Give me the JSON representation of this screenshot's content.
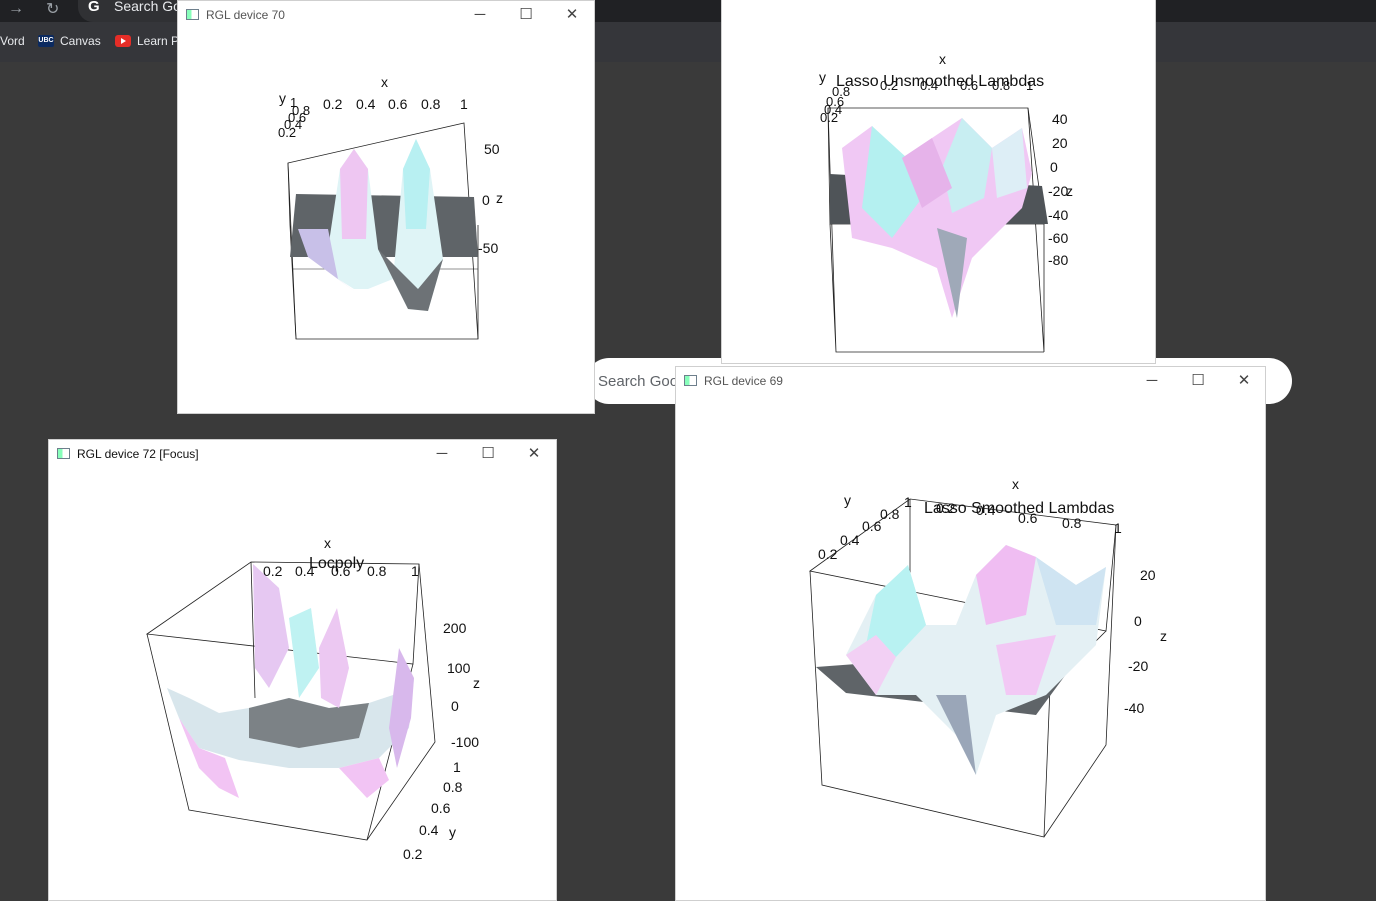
{
  "browser": {
    "search_text": "Search Go",
    "bookmarks": [
      "Vord",
      "Canvas",
      "Learn P"
    ],
    "ubc_label": "UBC"
  },
  "google_search": {
    "placeholder": "Search Goo"
  },
  "windows": {
    "w70": {
      "title": "RGL device 70",
      "axis_labels": {
        "x": "x",
        "y": "y",
        "z": "z"
      },
      "x_ticks": [
        "0.2",
        "0.4",
        "0.6",
        "0.8",
        "1"
      ],
      "y_ticks": [
        "1",
        "0.8",
        "0.6",
        "0.4",
        "0.2"
      ],
      "z_ticks": [
        "50",
        "0",
        "-50"
      ]
    },
    "wtop": {
      "chart_title": "Lasso Unsmoothed Lambdas",
      "axis_labels": {
        "x": "x",
        "y": "y",
        "z": "z"
      },
      "x_ticks": [
        "0.2",
        "0.4",
        "0.6",
        "0.8",
        "1"
      ],
      "y_ticks": [
        "0.8",
        "0.6",
        "0.4",
        "0.2"
      ],
      "z_ticks": [
        "40",
        "20",
        "0",
        "-20",
        "-40",
        "-60",
        "-80"
      ]
    },
    "w69": {
      "title": "RGL device 69",
      "chart_title": "Lasso Smoothed Lambdas",
      "axis_labels": {
        "x": "x",
        "y": "y",
        "z": "z"
      },
      "x_ticks": [
        "0.2",
        "0.4",
        "0.6",
        "0.8",
        "1"
      ],
      "y_ticks": [
        "1",
        "0.8",
        "0.6",
        "0.4",
        "0.2"
      ],
      "z_ticks": [
        "20",
        "0",
        "-20",
        "-40"
      ]
    },
    "w72": {
      "title": "RGL device 72 [Focus]",
      "chart_title": "Locpoly",
      "axis_labels": {
        "x": "x",
        "y": "y",
        "z": "z"
      },
      "x_ticks": [
        "0.2",
        "0.4",
        "0.6",
        "0.8",
        "1"
      ],
      "y_ticks": [
        "1",
        "0.8",
        "0.6",
        "0.4",
        "0.2"
      ],
      "z_ticks": [
        "200",
        "100",
        "0",
        "-100"
      ]
    }
  },
  "controls": {
    "minimize": "─",
    "maximize": "☐",
    "close": "✕"
  },
  "colors": {
    "surface_pink": "#f2b3f2",
    "surface_cyan": "#a8f0f0",
    "surface_gray": "#6f7478",
    "desktop": "#3a3a3a"
  }
}
